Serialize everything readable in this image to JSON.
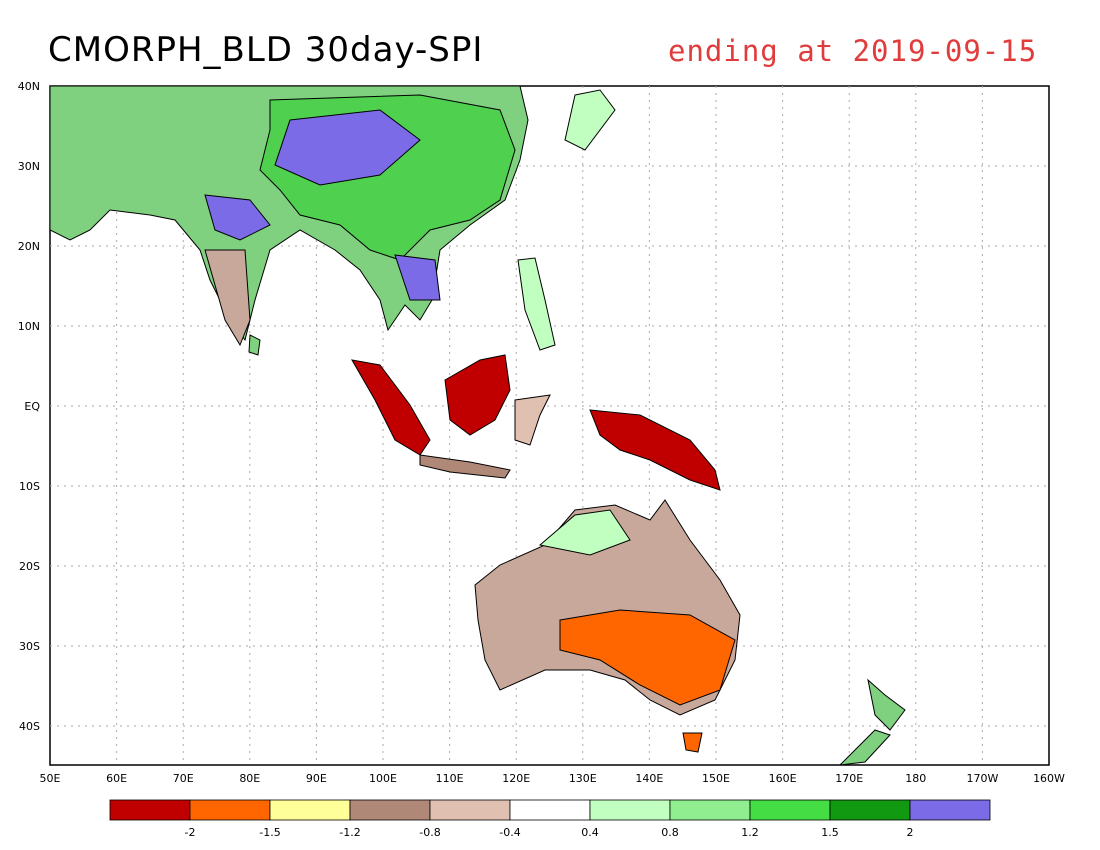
{
  "title": "CMORPH_BLD 30day-SPI",
  "subtitle": "ending at 2019-09-15",
  "lat_labels": [
    "40N",
    "30N",
    "20N",
    "10N",
    "EQ",
    "10S",
    "20S",
    "30S",
    "40S"
  ],
  "lon_labels": [
    "50E",
    "60E",
    "70E",
    "80E",
    "90E",
    "100E",
    "110E",
    "120E",
    "130E",
    "140E",
    "150E",
    "160E",
    "170E",
    "180",
    "170W",
    "160W"
  ],
  "legend": {
    "colors": [
      "#c00000",
      "#ff6600",
      "#ffff99",
      "#b08878",
      "#e0c0b0",
      "#ffffff",
      "#c0ffc0",
      "#90ee90",
      "#44dd44",
      "#119911",
      "#7b6be6"
    ],
    "labels": [
      "-2",
      "-1.5",
      "-1.2",
      "-0.8",
      "-0.4",
      "0.4",
      "0.8",
      "1.2",
      "1.5",
      "2"
    ]
  },
  "colors": {
    "land_outline": "#000000",
    "grid": "#aaaaaa"
  }
}
